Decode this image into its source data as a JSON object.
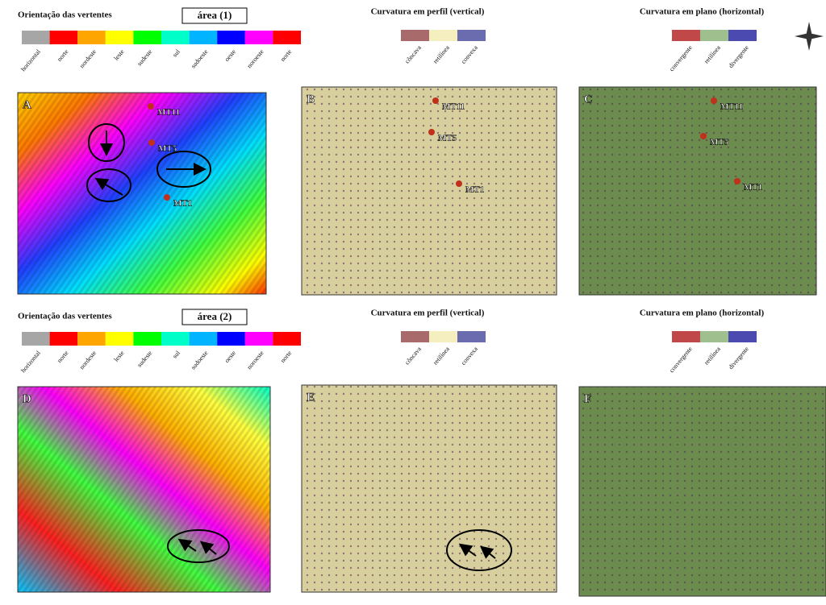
{
  "rows": [
    {
      "aspect_title": "Orientação das vertentes",
      "area_label": "área (1)",
      "aspect_classes": [
        {
          "label": "horizontal",
          "color": "#a6a6a6"
        },
        {
          "label": "norte",
          "color": "#ff0000"
        },
        {
          "label": "nordeste",
          "color": "#ffa500"
        },
        {
          "label": "leste",
          "color": "#ffff00"
        },
        {
          "label": "sudeste",
          "color": "#00ff00"
        },
        {
          "label": "sul",
          "color": "#00ffc8"
        },
        {
          "label": "sudoeste",
          "color": "#00b4ff"
        },
        {
          "label": "oeste",
          "color": "#0000ff"
        },
        {
          "label": "noroeste",
          "color": "#ff00ff"
        },
        {
          "label": "norte",
          "color": "#ff0000"
        }
      ],
      "profile_title": "Curvatura em perfil (vertical)",
      "profile_classes": [
        {
          "label": "côncava",
          "color": "#a86a6a"
        },
        {
          "label": "retilínea",
          "color": "#f5efc0"
        },
        {
          "label": "convexa",
          "color": "#6b6bb0"
        }
      ],
      "plan_title": "Curvatura em plano (horizontal)",
      "plan_classes": [
        {
          "label": "convergente",
          "color": "#c04848"
        },
        {
          "label": "retilínea",
          "color": "#9fbf8f"
        },
        {
          "label": "divergente",
          "color": "#4a4ab0"
        }
      ],
      "panels": [
        {
          "letter": "A",
          "points": [
            "MT11",
            "MT5",
            "MT1"
          ]
        },
        {
          "letter": "B",
          "points": [
            "MT11",
            "MT5",
            "MT1"
          ]
        },
        {
          "letter": "C",
          "points": [
            "MT11",
            "MT5",
            "MT1"
          ]
        }
      ]
    },
    {
      "aspect_title": "Orientação das vertentes",
      "area_label": "área (2)",
      "aspect_classes": [
        {
          "label": "horizontal",
          "color": "#a6a6a6"
        },
        {
          "label": "norte",
          "color": "#ff0000"
        },
        {
          "label": "nordeste",
          "color": "#ffa500"
        },
        {
          "label": "leste",
          "color": "#ffff00"
        },
        {
          "label": "sudeste",
          "color": "#00ff00"
        },
        {
          "label": "sul",
          "color": "#00ffc8"
        },
        {
          "label": "sudoeste",
          "color": "#00b4ff"
        },
        {
          "label": "oeste",
          "color": "#0000ff"
        },
        {
          "label": "noroeste",
          "color": "#ff00ff"
        },
        {
          "label": "norte",
          "color": "#ff0000"
        }
      ],
      "profile_title": "Curvatura em perfil (vertical)",
      "profile_classes": [
        {
          "label": "côncava",
          "color": "#a86a6a"
        },
        {
          "label": "retilínea",
          "color": "#f5efc0"
        },
        {
          "label": "convexa",
          "color": "#6b6bb0"
        }
      ],
      "plan_title": "Curvatura em plano (horizontal)",
      "plan_classes": [
        {
          "label": "convergente",
          "color": "#c04848"
        },
        {
          "label": "retilínea",
          "color": "#9fbf8f"
        },
        {
          "label": "divergente",
          "color": "#4a4ab0"
        }
      ],
      "panels": [
        {
          "letter": "D",
          "points": []
        },
        {
          "letter": "E",
          "points": []
        },
        {
          "letter": "F",
          "points": []
        }
      ]
    }
  ]
}
